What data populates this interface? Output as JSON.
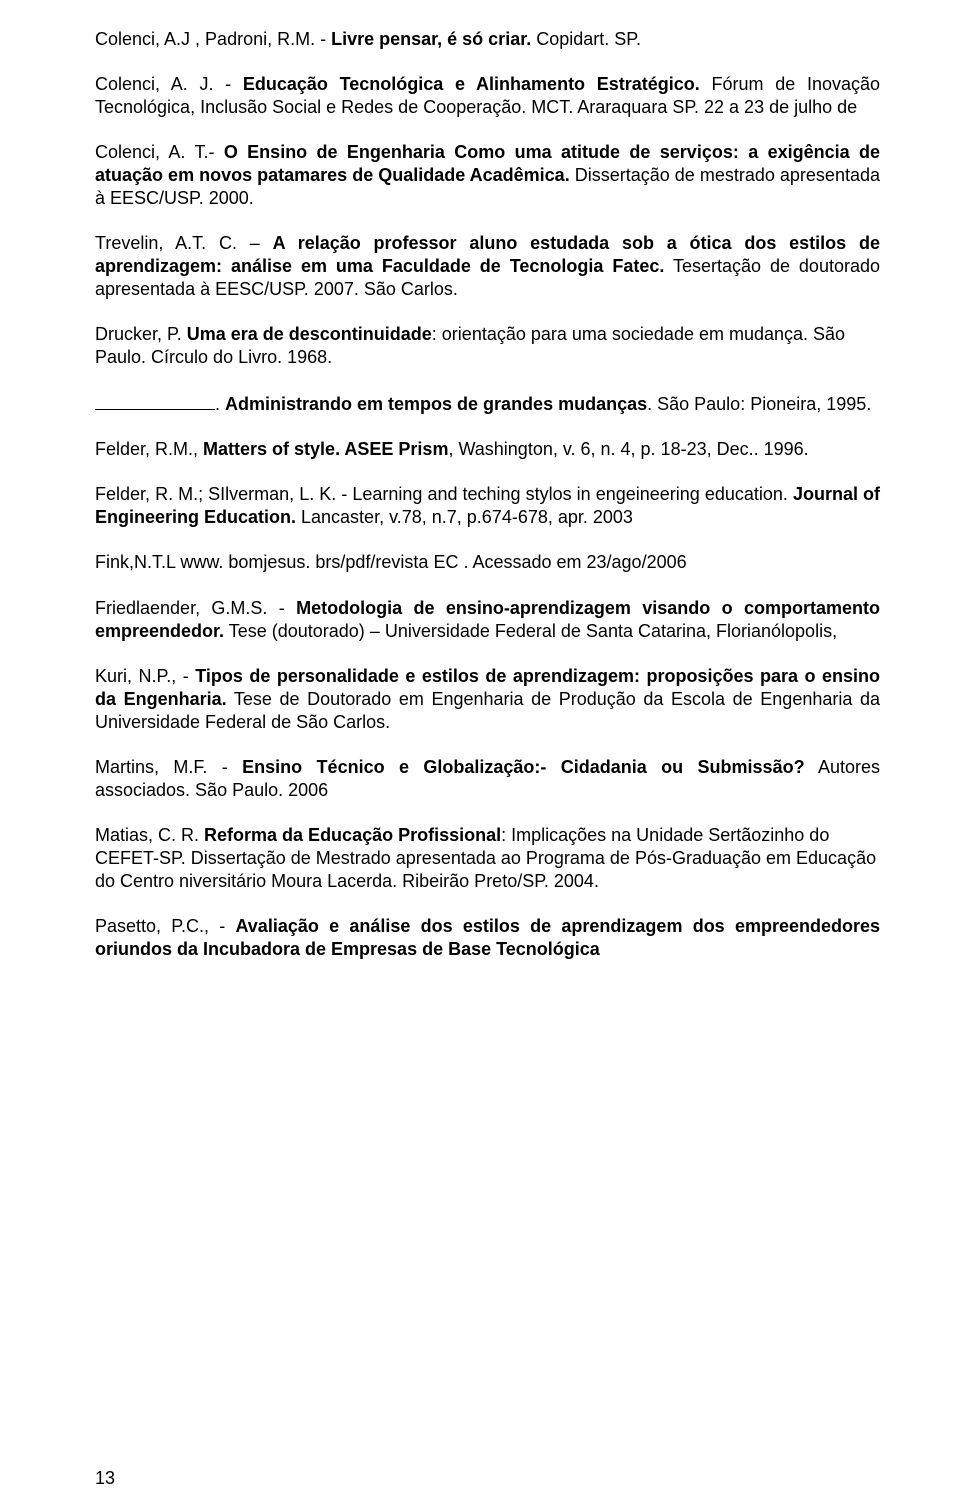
{
  "refs": {
    "r1": {
      "a": "Colenci, A.J , Padroni, R.M. - ",
      "b": "Livre pensar, é só criar.",
      "c": " Copidart. SP."
    },
    "r2": {
      "a": "Colenci, A. J. -  ",
      "b": "Educação Tecnológica e Alinhamento Estratégico.",
      "c": " Fórum de Inovação Tecnológica, Inclusão Social e Redes de Cooperação. MCT. Araraquara SP. 22 a 23 de julho de"
    },
    "r3": {
      "a": "Colenci, A. T.-  ",
      "b": "O Ensino de Engenharia Como uma atitude de serviços: a exigência de atuação em novos patamares de Qualidade Acadêmica.",
      "c": " Dissertação de mestrado apresentada à EESC/USP. 2000."
    },
    "r4": {
      "a": "Trevelin, A.T. C. – ",
      "b": "A relação professor aluno estudada sob a ótica dos estilos de aprendizagem: análise em uma Faculdade de Tecnologia Fatec.",
      "c": " Tesertação de doutorado apresentada à EESC/USP. 2007. São Carlos."
    },
    "r5": {
      "a": "Drucker, P. ",
      "b": "Uma era de descontinuidade",
      "c": ": orientação para uma sociedade em mudança. São\nPaulo. Círculo do Livro. 1968."
    },
    "r6": {
      "a": ". ",
      "b": "Administrando em tempos de grandes mudanças",
      "c": ". São Paulo: Pioneira, 1995."
    },
    "r7": {
      "a": "Felder, R.M., ",
      "b": "Matters of style. ASEE Prism",
      "c": ", Washington, v. 6, n. 4, p. 18-23, Dec.. 1996."
    },
    "r8": {
      "a": "Felder, R. M.; SIlverman, L. K.  - Learning and teching stylos in engeineering education. ",
      "b": "Journal of Engineering Education.",
      "c": " Lancaster, v.78, n.7, p.674-678, apr. 2003"
    },
    "r9": {
      "a": "Fink,N.T.L www. bomjesus. brs/pdf/revista EC . Acessado em 23/ago/2006"
    },
    "r10": {
      "a": "Friedlaender, G.M.S. - ",
      "b": "Metodologia de ensino-aprendizagem visando o comportamento empreendedor.",
      "c": " Tese (doutorado) – Universidade Federal de Santa Catarina, Florianólopolis,"
    },
    "r11": {
      "a": "Kuri, N.P.,  - ",
      "b": "Tipos de personalidade e estilos de aprendizagem: proposições para o ensino da Engenharia.",
      "c": " Tese de Doutorado em Engenharia de Produção da Escola de Engenharia da Universidade Federal de São Carlos."
    },
    "r12": {
      "a": "Martins, M.F. -  ",
      "b": "Ensino Técnico e Globalização:- Cidadania ou Submissão?",
      "c": " Autores associados. São Paulo. 2006"
    },
    "r13": {
      "a": "Matias, C. R. ",
      "b": "Reforma da Educação Profissional",
      "c": ": Implicações na Unidade Sertãozinho do CEFET-SP. Dissertação de Mestrado apresentada ao Programa de Pós-Graduação em Educação do Centro niversitário Moura Lacerda. Ribeirão Preto/SP. 2004."
    },
    "r14": {
      "a": "Pasetto, P.C.,  - ",
      "b": "Avaliação e análise dos estilos de aprendizagem dos empreendedores oriundos da Incubadora de Empresas de Base Tecnológica"
    }
  },
  "page_number": "13"
}
